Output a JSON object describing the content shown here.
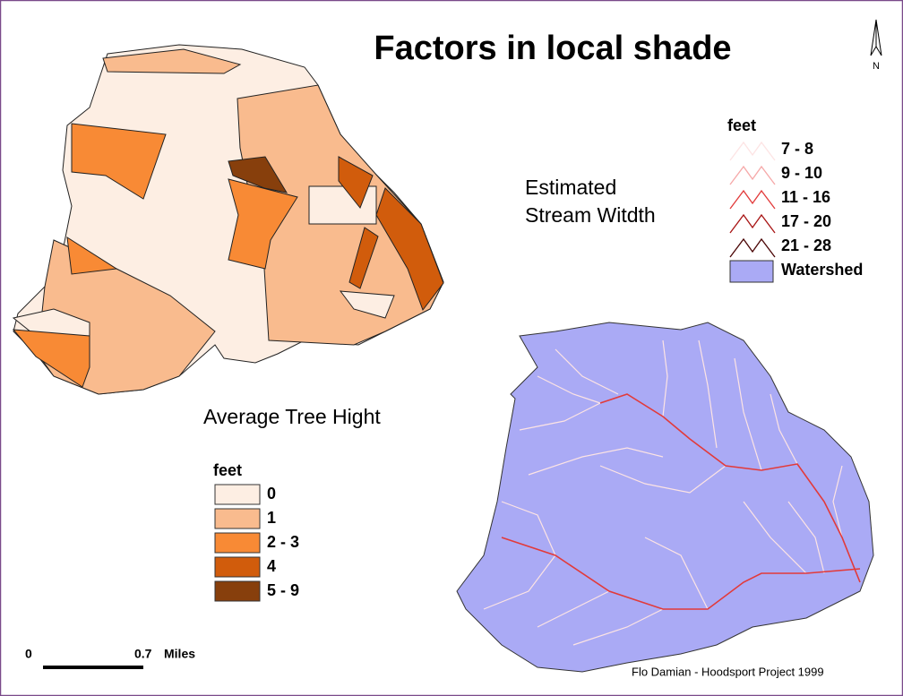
{
  "title": "Factors in local shade",
  "north_arrow": "N",
  "stream_caption": [
    "Estimated",
    "Stream Witdth"
  ],
  "stream_legend": {
    "title": "feet",
    "items": [
      {
        "label": "7 - 8",
        "color": "#fde4e4"
      },
      {
        "label": "9 - 10",
        "color": "#f6a8a8"
      },
      {
        "label": "11 - 16",
        "color": "#e23a3a"
      },
      {
        "label": "17 - 20",
        "color": "#a81414"
      },
      {
        "label": "21 - 28",
        "color": "#4a0505"
      }
    ],
    "watershed": {
      "label": "Watershed",
      "color": "#aaaaf5"
    }
  },
  "tree_caption": "Average Tree Hight",
  "tree_legend": {
    "title": "feet",
    "items": [
      {
        "label": "0",
        "color": "#fdeee3"
      },
      {
        "label": "1",
        "color": "#f9bb8e"
      },
      {
        "label": "2 - 3",
        "color": "#f88a35"
      },
      {
        "label": "4",
        "color": "#d15c0c"
      },
      {
        "label": "5 - 9",
        "color": "#873f0c"
      }
    ]
  },
  "scale_bar": {
    "start": "0",
    "end": "0.7",
    "unit": "Miles"
  },
  "credit": "Flo Damian - Hoodsport Project 1999"
}
